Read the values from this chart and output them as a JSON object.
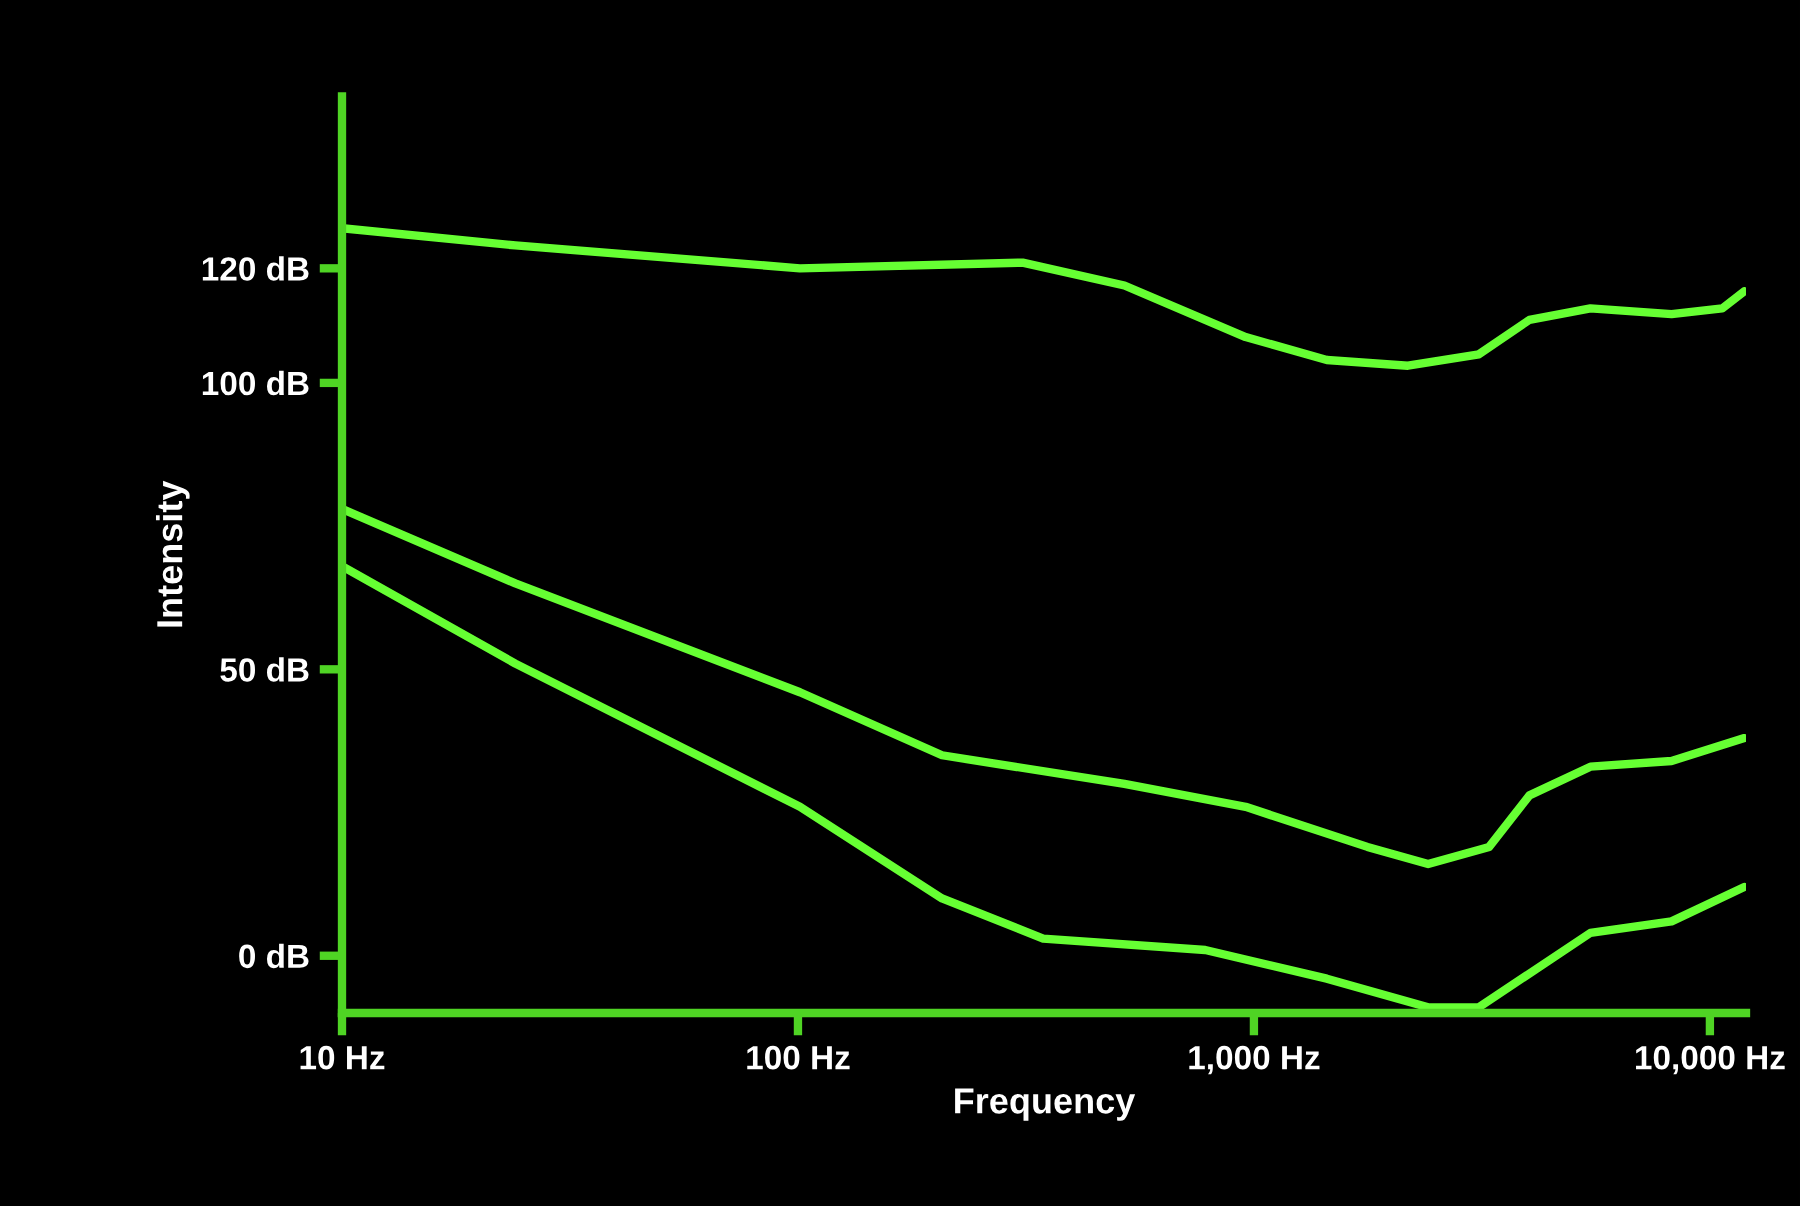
{
  "chart_data": {
    "type": "line",
    "xlabel": "Frequency",
    "ylabel": "Intensity",
    "log": "x",
    "xlim": [
      10,
      12000
    ],
    "xticks": [
      {
        "value": 10,
        "label": "10 Hz"
      },
      {
        "value": 100,
        "label": "100 Hz"
      },
      {
        "value": 1000,
        "label": "1,000 Hz"
      },
      {
        "value": 10000,
        "label": "10,000 Hz"
      }
    ],
    "ylim": [
      -10,
      150
    ],
    "yticks": [
      {
        "value": 0,
        "label": "0 dB"
      },
      {
        "value": 50,
        "label": "50 dB"
      },
      {
        "value": 100,
        "label": "100 dB"
      },
      {
        "value": 120,
        "label": "120 dB"
      }
    ],
    "grid": false,
    "marker": "none",
    "line_style": "solid",
    "series": [
      {
        "color": "#66ff33",
        "x": [
          10,
          24,
          101,
          311,
          520,
          959,
          1445,
          2176,
          3114,
          4020,
          5470,
          8240,
          10640,
          11900
        ],
        "values": [
          127,
          124,
          120,
          121,
          117,
          108,
          104,
          103,
          105,
          111,
          113,
          112,
          113,
          116
        ]
      },
      {
        "color": "#66ff33",
        "x": [
          10,
          24,
          101,
          207,
          520,
          959,
          1774,
          2410,
          3280,
          4020,
          5470,
          8240,
          11900
        ],
        "values": [
          78,
          65,
          46,
          35,
          30,
          26,
          19,
          16,
          19,
          28,
          33,
          34,
          38
        ]
      },
      {
        "color": "#66ff33",
        "x": [
          10,
          24,
          101,
          207,
          345,
          782,
          1445,
          2410,
          3114,
          5470,
          8240,
          11900
        ],
        "values": [
          68,
          51,
          26,
          10,
          3,
          1,
          -4,
          -9,
          -9,
          4,
          6,
          12
        ]
      }
    ]
  }
}
